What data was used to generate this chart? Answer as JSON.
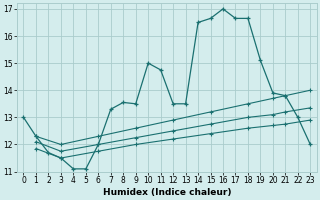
{
  "xlabel": "Humidex (Indice chaleur)",
  "bg_color": "#d4eded",
  "grid_color": "#aacccc",
  "line_color": "#1a7070",
  "xlim": [
    -0.5,
    23.5
  ],
  "ylim": [
    11,
    17.2
  ],
  "yticks": [
    11,
    12,
    13,
    14,
    15,
    16,
    17
  ],
  "xticks": [
    0,
    1,
    2,
    3,
    4,
    5,
    6,
    7,
    8,
    9,
    10,
    11,
    12,
    13,
    14,
    15,
    16,
    17,
    18,
    19,
    20,
    21,
    22,
    23
  ],
  "s1_x": [
    0,
    1,
    2,
    3,
    4,
    5,
    6,
    7,
    8,
    9,
    10,
    11,
    12,
    13,
    14,
    15,
    16,
    17,
    18,
    19,
    20,
    21,
    22,
    23
  ],
  "s1_y": [
    13.0,
    12.3,
    11.7,
    11.5,
    11.1,
    11.1,
    12.0,
    13.3,
    13.55,
    13.5,
    15.0,
    14.75,
    13.5,
    13.5,
    16.5,
    16.65,
    17.0,
    16.65,
    16.65,
    15.1,
    13.9,
    13.8,
    13.0,
    12.0
  ],
  "s2_x": [
    1,
    3,
    6,
    9,
    12,
    15,
    18,
    20,
    21,
    23
  ],
  "s2_y": [
    12.3,
    12.0,
    12.3,
    12.6,
    12.9,
    13.2,
    13.5,
    13.7,
    13.8,
    14.0
  ],
  "s3_x": [
    1,
    3,
    6,
    9,
    12,
    15,
    18,
    20,
    21,
    23
  ],
  "s3_y": [
    12.1,
    11.75,
    12.0,
    12.25,
    12.5,
    12.75,
    13.0,
    13.1,
    13.2,
    13.35
  ],
  "s4_x": [
    1,
    3,
    6,
    9,
    12,
    15,
    18,
    20,
    21,
    23
  ],
  "s4_y": [
    11.85,
    11.5,
    11.75,
    12.0,
    12.2,
    12.4,
    12.6,
    12.7,
    12.75,
    12.9
  ]
}
